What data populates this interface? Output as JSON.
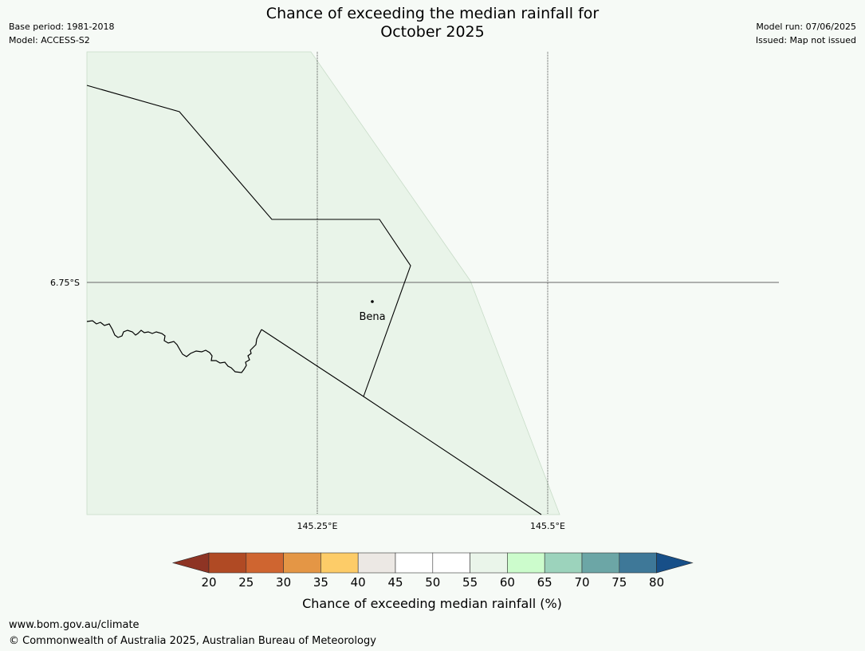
{
  "header": {
    "title_line1": "Chance of exceeding the median rainfall for",
    "title_line2": "October 2025",
    "base_period": "Base period: 1981-2018",
    "model": "Model: ACCESS-S2",
    "model_run": "Model run: 07/06/2025",
    "issued": "Issued: Map not issued"
  },
  "map": {
    "place_name": "Bena",
    "lat_label": "6.75°S",
    "lon_labels": [
      "145.25°E",
      "145.5°E"
    ],
    "shaded_category": "55-60",
    "colors": {
      "land_fill": "#e9f4e9",
      "background": "#f6faf6",
      "boundary": "#000000",
      "gridline": "#555555"
    }
  },
  "legend": {
    "title": "Chance of exceeding median rainfall (%)",
    "ticks": [
      "20",
      "25",
      "30",
      "35",
      "40",
      "45",
      "50",
      "55",
      "60",
      "65",
      "70",
      "75",
      "80"
    ],
    "low_extend_color": "#8e3424",
    "high_extend_color": "#174f88",
    "colors": [
      "#b04a24",
      "#cf6530",
      "#e49645",
      "#fdcc68",
      "#ece8e4",
      "#ffffff",
      "#ffffff",
      "#eaf5ea",
      "#ccfccc",
      "#9cd3bc",
      "#6ca6a6",
      "#3e7898"
    ]
  },
  "footer": {
    "url": "www.bom.gov.au/climate",
    "copyright": "© Commonwealth of Australia 2025, Australian Bureau of Meteorology"
  }
}
